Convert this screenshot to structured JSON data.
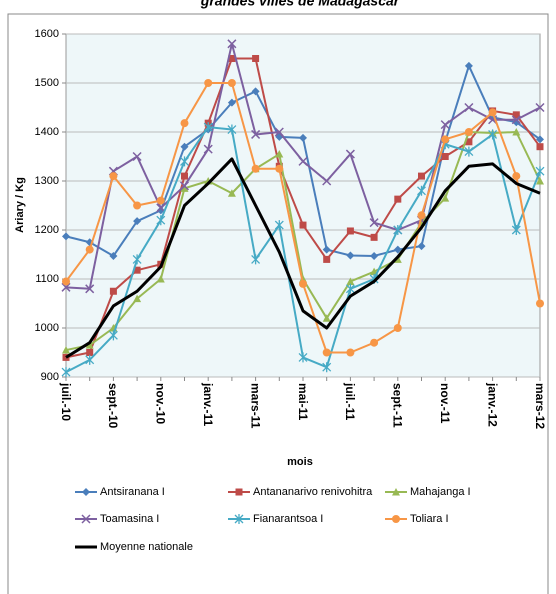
{
  "chart_data": {
    "type": "line",
    "title": "grandes villes de Madagascar",
    "xlabel": "mois",
    "ylabel": "Ariary / Kg",
    "categories": [
      "juil.-10",
      null,
      "sept.-10",
      null,
      "nov.-10",
      null,
      "janv.-11",
      null,
      "mars-11",
      null,
      "mai-11",
      null,
      "juil.-11",
      null,
      "sept.-11",
      null,
      "nov.-11",
      null,
      "janv.-12",
      null,
      "mars-12"
    ],
    "ylim": [
      900,
      1600
    ],
    "yticks": [
      900,
      1000,
      1100,
      1200,
      1300,
      1400,
      1500,
      1600
    ],
    "grid": true,
    "legend": "bottom",
    "series": [
      {
        "name": "Antsiranana I",
        "color": "#4a7ebb",
        "marker": "diamond",
        "values": [
          1187,
          1175,
          1147,
          1218,
          1240,
          1370,
          1405,
          1460,
          1483,
          1390,
          1388,
          1160,
          1148,
          1147,
          1160,
          1167,
          1380,
          1535,
          1430,
          1420,
          1385
        ]
      },
      {
        "name": "Antananarivo renivohitra",
        "color": "#be4b48",
        "marker": "square",
        "values": [
          940,
          950,
          1075,
          1118,
          1130,
          1310,
          1418,
          1550,
          1550,
          1330,
          1210,
          1140,
          1198,
          1185,
          1263,
          1310,
          1350,
          1380,
          1443,
          1435,
          1370
        ]
      },
      {
        "name": "Mahajanga I",
        "color": "#98b954",
        "marker": "triangle",
        "values": [
          955,
          965,
          1000,
          1060,
          1100,
          1285,
          1300,
          1275,
          1325,
          1355,
          1100,
          1020,
          1095,
          1115,
          1140,
          1215,
          1265,
          1400,
          1398,
          1400,
          1300
        ]
      },
      {
        "name": "Toamasina I",
        "color": "#7d60a0",
        "marker": "x",
        "values": [
          1083,
          1080,
          1320,
          1350,
          1245,
          1290,
          1365,
          1580,
          1395,
          1400,
          1340,
          1300,
          1355,
          1215,
          1200,
          1220,
          1415,
          1450,
          1425,
          1425,
          1450
        ]
      },
      {
        "name": "Fianarantsoa I",
        "color": "#46aac5",
        "marker": "star",
        "values": [
          910,
          935,
          985,
          1140,
          1220,
          1340,
          1410,
          1405,
          1140,
          1210,
          940,
          920,
          1080,
          1100,
          1200,
          1280,
          1375,
          1360,
          1395,
          1200,
          1320
        ]
      },
      {
        "name": "Toliara I",
        "color": "#f79646",
        "marker": "circle",
        "values": [
          1095,
          1160,
          1310,
          1250,
          1260,
          1418,
          1500,
          1500,
          1325,
          1325,
          1090,
          950,
          950,
          970,
          1000,
          1230,
          1385,
          1400,
          1440,
          1310,
          1050
        ]
      },
      {
        "name": "Moyenne nationale",
        "color": "#000000",
        "marker": "none",
        "values": [
          940,
          970,
          1045,
          1075,
          1125,
          1250,
          1295,
          1345,
          1250,
          1155,
          1035,
          1000,
          1065,
          1095,
          1145,
          1205,
          1280,
          1330,
          1335,
          1295,
          1275
        ]
      }
    ]
  }
}
